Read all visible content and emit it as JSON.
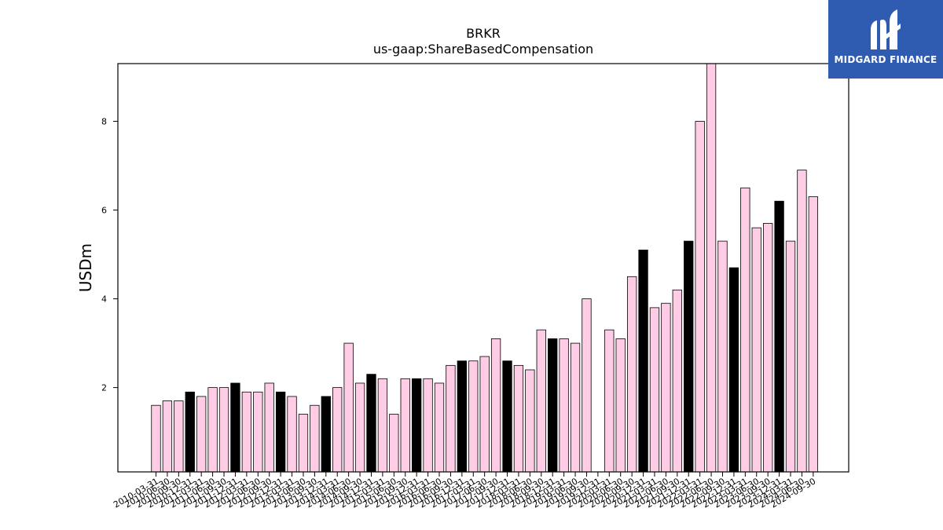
{
  "chart_data": {
    "type": "bar",
    "title": "BRKR",
    "subtitle": "us-gaap:ShareBasedCompensation",
    "xlabel": "",
    "ylabel": "USDm",
    "ylim": [
      0.1,
      9.3
    ],
    "yticks": [
      2,
      4,
      6,
      8
    ],
    "grid": false,
    "colors": {
      "quarter": "#ffcce6",
      "annual": "#000000",
      "edge": "#000000"
    },
    "categories": [
      "2010-03-31",
      "2010-06-30",
      "2010-09-30",
      "2010-12-31",
      "2011-03-31",
      "2011-06-30",
      "2011-09-30",
      "2011-12-31",
      "2012-03-31",
      "2012-06-30",
      "2012-09-30",
      "2012-12-31",
      "2013-03-31",
      "2013-06-30",
      "2013-09-30",
      "2013-12-31",
      "2014-03-31",
      "2014-06-30",
      "2014-09-30",
      "2014-12-31",
      "2015-03-31",
      "2015-06-30",
      "2015-09-30",
      "2015-12-31",
      "2016-03-31",
      "2016-06-30",
      "2016-09-30",
      "2016-12-31",
      "2017-03-31",
      "2017-06-30",
      "2017-09-30",
      "2017-12-31",
      "2018-03-31",
      "2018-06-30",
      "2018-09-30",
      "2018-12-31",
      "2019-03-31",
      "2019-06-30",
      "2019-09-30",
      "",
      "2020-03-31",
      "2020-06-30",
      "2020-09-30",
      "2020-12-31",
      "2021-03-31",
      "2021-06-30",
      "2021-09-30",
      "2021-12-31",
      "2022-03-31",
      "2022-06-30",
      "2022-09-30",
      "2022-12-31",
      "2023-03-31",
      "2023-06-30",
      "2023-09-30",
      "2023-12-31",
      "2024-03-31",
      "2024-06-30",
      "2024-09-30"
    ],
    "tick_labels": [
      "2010-03-31",
      "2010-06-30",
      "2010-09-30",
      "2010-12-31",
      "2011-03-31",
      "2011-06-30",
      "2011-09-30",
      "2011-12-31",
      "2012-03-31",
      "2012-06-30",
      "2012-09-30",
      "2012-12-31",
      "2013-03-31",
      "2013-06-30",
      "2013-09-30",
      "2013-12-31",
      "2014-03-31",
      "2014-06-30",
      "2014-09-30",
      "2014-12-31",
      "2015-03-31",
      "2015-06-30",
      "2015-09-30",
      "2015-12-31",
      "2016-03-31",
      "2016-06-30",
      "2016-09-30",
      "2016-12-31",
      "2017-03-31",
      "2017-06-30",
      "2017-09-30",
      "2017-12-31",
      "2018-03-31",
      "2018-06-30",
      "2018-09-30",
      "2018-12-31",
      "2019-03-31",
      "2019-06-30",
      "2019-09-30",
      "2019-12-31",
      "2020-03-31",
      "2020-06-30",
      "2020-09-30",
      "2020-12-31",
      "2021-03-31",
      "2021-06-30",
      "2021-09-30",
      "2021-12-31",
      "2022-03-31",
      "2022-06-30",
      "2022-09-30",
      "2022-12-31",
      "2023-03-31",
      "2023-06-30",
      "2023-09-30",
      "2023-12-31",
      "2024-03-31",
      "2024-06-30",
      "2024-09-30"
    ],
    "values": [
      1.6,
      1.7,
      1.7,
      1.9,
      1.8,
      2.0,
      2.0,
      2.1,
      1.9,
      1.9,
      2.1,
      1.9,
      1.8,
      1.4,
      1.6,
      1.8,
      2.0,
      3.0,
      2.1,
      2.3,
      2.2,
      1.4,
      2.2,
      2.2,
      2.2,
      2.1,
      2.5,
      2.6,
      2.6,
      2.7,
      3.1,
      2.6,
      2.5,
      2.4,
      3.3,
      3.1,
      3.1,
      3.0,
      4.0,
      null,
      3.3,
      3.1,
      4.5,
      5.1,
      3.8,
      3.9,
      4.2,
      5.3,
      8.0,
      9.3,
      5.3,
      4.7,
      6.5,
      5.6,
      5.7,
      6.2,
      5.3,
      6.9,
      6.3
    ],
    "is_annual": [
      false,
      false,
      false,
      true,
      false,
      false,
      false,
      true,
      false,
      false,
      false,
      true,
      false,
      false,
      false,
      true,
      false,
      false,
      false,
      true,
      false,
      false,
      false,
      true,
      false,
      false,
      false,
      true,
      false,
      false,
      false,
      true,
      false,
      false,
      false,
      true,
      false,
      false,
      false,
      false,
      false,
      false,
      false,
      true,
      false,
      false,
      false,
      true,
      false,
      false,
      false,
      true,
      false,
      false,
      false,
      true,
      false,
      false,
      false
    ]
  },
  "logo": {
    "text": "MIDGARD FINANCE",
    "background": "#2f5bb0"
  }
}
